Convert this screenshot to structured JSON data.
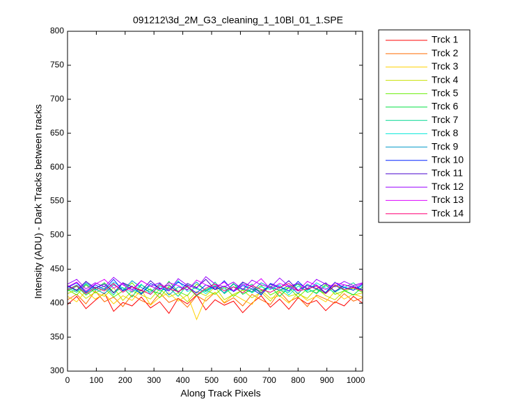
{
  "chart_data": {
    "type": "line",
    "title": "091212\\3d_2M_G3_cleaning_1_10Bl_01_1.SPE",
    "x_label": "Along Track Pixels",
    "y_label": "Intensity (ADU) - Dark Tracks between tracks",
    "xlim": [
      0,
      1024
    ],
    "ylim": [
      300,
      800
    ],
    "xticks": [
      0,
      100,
      200,
      300,
      400,
      500,
      600,
      700,
      800,
      900,
      1000
    ],
    "yticks": [
      300,
      350,
      400,
      450,
      500,
      550,
      600,
      650,
      700,
      750,
      800
    ],
    "legend": "outside-right-top",
    "x": [
      0,
      32,
      64,
      96,
      128,
      160,
      192,
      224,
      256,
      288,
      320,
      352,
      384,
      416,
      448,
      480,
      512,
      544,
      576,
      608,
      640,
      672,
      704,
      736,
      768,
      800,
      832,
      864,
      896,
      928,
      960,
      992,
      1024
    ],
    "series": [
      {
        "name": "Trck 1",
        "color": "#ff0000",
        "values": [
          398,
          410,
          392,
          404,
          415,
          388,
          401,
          396,
          409,
          393,
          402,
          385,
          407,
          399,
          412,
          390,
          405,
          397,
          403,
          386,
          400,
          411,
          394,
          406,
          391,
          408,
          399,
          404,
          389,
          402,
          396,
          410,
          400
        ]
      },
      {
        "name": "Trck 2",
        "color": "#ff6a00",
        "values": [
          405,
          413,
          399,
          418,
          402,
          409,
          395,
          412,
          404,
          398,
          415,
          401,
          407,
          394,
          411,
          403,
          416,
          400,
          408,
          396,
          413,
          405,
          398,
          417,
          402,
          409,
          395,
          412,
          406,
          400,
          414,
          403,
          408
        ]
      },
      {
        "name": "Trck 3",
        "color": "#ffd000",
        "values": [
          410,
          402,
          418,
          406,
          414,
          399,
          411,
          404,
          420,
          397,
          409,
          415,
          403,
          412,
          376,
          408,
          416,
          401,
          413,
          405,
          398,
          419,
          407,
          411,
          400,
          415,
          404,
          410,
          402,
          417,
          406,
          413,
          409
        ]
      },
      {
        "name": "Trck 4",
        "color": "#c8e000",
        "values": [
          414,
          420,
          407,
          416,
          410,
          423,
          404,
          418,
          412,
          406,
          421,
          409,
          415,
          402,
          417,
          411,
          424,
          405,
          413,
          419,
          408,
          416,
          403,
          420,
          410,
          414,
          407,
          422,
          411,
          405,
          418,
          412,
          415
        ]
      },
      {
        "name": "Trck 5",
        "color": "#66ee00",
        "values": [
          420,
          412,
          427,
          415,
          422,
          409,
          418,
          430,
          414,
          421,
          408,
          425,
          417,
          411,
          428,
          419,
          413,
          424,
          410,
          420,
          416,
          426,
          412,
          419,
          423,
          409,
          421,
          415,
          428,
          413,
          418,
          422,
          416
        ]
      },
      {
        "name": "Trck 6",
        "color": "#00e040",
        "values": [
          418,
          425,
          412,
          421,
          430,
          416,
          423,
          409,
          427,
          419,
          414,
          432,
          417,
          424,
          411,
          420,
          426,
          415,
          429,
          413,
          421,
          418,
          425,
          410,
          423,
          428,
          416,
          420,
          414,
          426,
          419,
          412,
          424
        ]
      },
      {
        "name": "Trck 7",
        "color": "#00d890",
        "values": [
          422,
          416,
          428,
          419,
          425,
          412,
          430,
          420,
          415,
          426,
          418,
          423,
          410,
          427,
          421,
          417,
          431,
          414,
          424,
          420,
          428,
          413,
          425,
          419,
          416,
          429,
          422,
          414,
          426,
          418,
          423,
          430,
          417
        ]
      },
      {
        "name": "Trck 8",
        "color": "#00e8d8",
        "values": [
          420,
          427,
          415,
          424,
          418,
          431,
          422,
          416,
          428,
          413,
          425,
          420,
          433,
          417,
          423,
          414,
          426,
          421,
          418,
          429,
          415,
          424,
          420,
          427,
          412,
          425,
          418,
          430,
          422,
          416,
          424,
          419,
          426
        ]
      },
      {
        "name": "Trck 9",
        "color": "#0098c8",
        "values": [
          425,
          418,
          430,
          421,
          414,
          427,
          419,
          433,
          423,
          416,
          429,
          412,
          424,
          420,
          431,
          418,
          425,
          415,
          428,
          421,
          417,
          430,
          423,
          419,
          426,
          414,
          428,
          421,
          416,
          431,
          420,
          425,
          418
        ]
      },
      {
        "name": "Trck 10",
        "color": "#0020ff",
        "values": [
          423,
          430,
          416,
          427,
          420,
          435,
          418,
          425,
          413,
          429,
          422,
          418,
          431,
          424,
          415,
          427,
          420,
          433,
          417,
          426,
          421,
          412,
          429,
          424,
          418,
          432,
          420,
          427,
          415,
          430,
          423,
          419,
          428
        ]
      },
      {
        "name": "Trck 11",
        "color": "#4400cc",
        "values": [
          426,
          419,
          432,
          422,
          428,
          415,
          430,
          424,
          418,
          433,
          421,
          427,
          416,
          429,
          423,
          435,
          420,
          425,
          418,
          431,
          424,
          415,
          428,
          422,
          433,
          419,
          426,
          421,
          430,
          417,
          427,
          424,
          420
        ]
      },
      {
        "name": "Trck 12",
        "color": "#9900ff",
        "values": [
          428,
          435,
          421,
          430,
          424,
          438,
          427,
          420,
          433,
          425,
          430,
          418,
          436,
          426,
          422,
          439,
          428,
          424,
          431,
          420,
          434,
          427,
          423,
          437,
          425,
          429,
          421,
          435,
          428,
          424,
          432,
          426,
          430
        ]
      },
      {
        "name": "Trck 13",
        "color": "#dd00ff",
        "values": [
          424,
          431,
          418,
          428,
          435,
          422,
          429,
          417,
          433,
          425,
          420,
          430,
          426,
          419,
          434,
          427,
          423,
          431,
          418,
          428,
          425,
          436,
          421,
          429,
          424,
          418,
          432,
          426,
          420,
          430,
          427,
          423,
          429
        ]
      },
      {
        "name": "Trck 14",
        "color": "#ff0077",
        "values": [
          420,
          426,
          414,
          423,
          418,
          429,
          416,
          424,
          419,
          413,
          427,
          421,
          417,
          425,
          412,
          422,
          428,
          418,
          424,
          415,
          426,
          420,
          416,
          423,
          429,
          418,
          421,
          425,
          414,
          427,
          420,
          423,
          418
        ]
      }
    ]
  }
}
